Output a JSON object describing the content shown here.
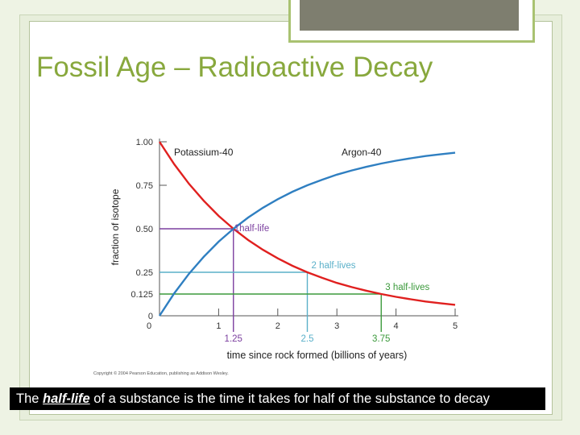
{
  "slide": {
    "title": "Fossil Age – Radioactive Decay",
    "caption": {
      "prefix": "The ",
      "term": "half-life",
      "suffix": " of a substance is the time it takes for half of the substance to decay"
    },
    "copyright": "Copyright © 2004 Pearson Education, publishing as Addison Wesley."
  },
  "colors": {
    "title": "#88a83d",
    "potassium": "#e0201f",
    "argon": "#2f7fc1",
    "half_life_1": "#7b3f9f",
    "half_life_2": "#5ab0c9",
    "half_life_3": "#3c9a3c",
    "axis": "#555555"
  },
  "chart_data": {
    "type": "line",
    "xlabel": "time since rock formed (billions of years)",
    "ylabel": "fraction of isotope",
    "xlim": [
      0,
      5
    ],
    "ylim": [
      0,
      1
    ],
    "x_ticks": [
      {
        "value": 1,
        "label": "1"
      },
      {
        "value": 2,
        "label": "2"
      },
      {
        "value": 3,
        "label": "3"
      },
      {
        "value": 4,
        "label": "4"
      },
      {
        "value": 5,
        "label": "5"
      }
    ],
    "x_secondary_ticks": [
      {
        "value": 1.25,
        "label": "1.25"
      },
      {
        "value": 2.5,
        "label": "2.5"
      },
      {
        "value": 3.75,
        "label": "3.75"
      }
    ],
    "y_ticks": [
      {
        "value": 0,
        "label": "0"
      },
      {
        "value": 0.125,
        "label": "0.125"
      },
      {
        "value": 0.25,
        "label": "0.25"
      },
      {
        "value": 0.5,
        "label": "0.50"
      },
      {
        "value": 0.75,
        "label": "0.75"
      },
      {
        "value": 1,
        "label": "1.00"
      }
    ],
    "series": [
      {
        "name": "Potassium-40",
        "x": [
          0,
          0.25,
          0.5,
          0.75,
          1,
          1.25,
          1.5,
          1.75,
          2,
          2.25,
          2.5,
          2.75,
          3,
          3.25,
          3.5,
          3.75,
          4,
          4.25,
          4.5,
          4.75,
          5
        ],
        "y": [
          1,
          0.871,
          0.758,
          0.66,
          0.574,
          0.5,
          0.435,
          0.379,
          0.33,
          0.287,
          0.25,
          0.218,
          0.189,
          0.165,
          0.144,
          0.125,
          0.109,
          0.095,
          0.082,
          0.072,
          0.063
        ]
      },
      {
        "name": "Argon-40",
        "x": [
          0,
          0.25,
          0.5,
          0.75,
          1,
          1.25,
          1.5,
          1.75,
          2,
          2.25,
          2.5,
          2.75,
          3,
          3.25,
          3.5,
          3.75,
          4,
          4.25,
          4.5,
          4.75,
          5
        ],
        "y": [
          0,
          0.129,
          0.242,
          0.34,
          0.426,
          0.5,
          0.565,
          0.621,
          0.67,
          0.713,
          0.75,
          0.782,
          0.811,
          0.835,
          0.856,
          0.875,
          0.891,
          0.905,
          0.918,
          0.928,
          0.937
        ]
      }
    ],
    "annotations": [
      {
        "label": "1half-life",
        "x": 1.25,
        "y": 0.5
      },
      {
        "label": "2 half-lives",
        "x": 2.5,
        "y": 0.25
      },
      {
        "label": "3 half-lives",
        "x": 3.75,
        "y": 0.125
      }
    ]
  }
}
